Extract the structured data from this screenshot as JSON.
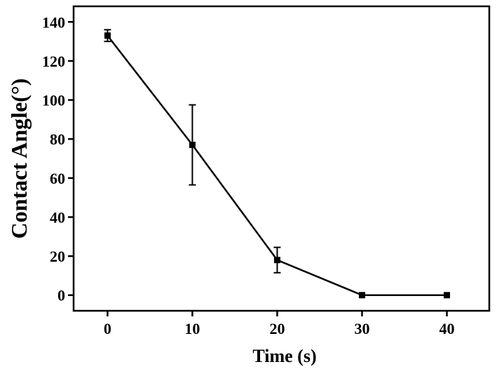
{
  "chart_data": {
    "type": "line",
    "xlabel": "Time (s)",
    "ylabel": "Contact Angle(°)",
    "xlim": [
      -4,
      45
    ],
    "ylim": [
      -8,
      148
    ],
    "x_ticks": [
      0,
      10,
      20,
      30,
      40
    ],
    "y_ticks": [
      0,
      20,
      40,
      60,
      80,
      100,
      120,
      140
    ],
    "x_tick_labels": [
      "0",
      "10",
      "20",
      "30",
      "40"
    ],
    "y_tick_labels": [
      "0",
      "20",
      "40",
      "60",
      "80",
      "100",
      "120",
      "140"
    ],
    "series": [
      {
        "x": [
          0,
          10,
          20,
          30,
          40
        ],
        "y": [
          133,
          77,
          18,
          0,
          0
        ],
        "error": [
          3,
          20.5,
          6.5,
          0,
          0
        ],
        "marker": "square",
        "color": "#000000"
      }
    ],
    "grid": false,
    "legend": false
  }
}
